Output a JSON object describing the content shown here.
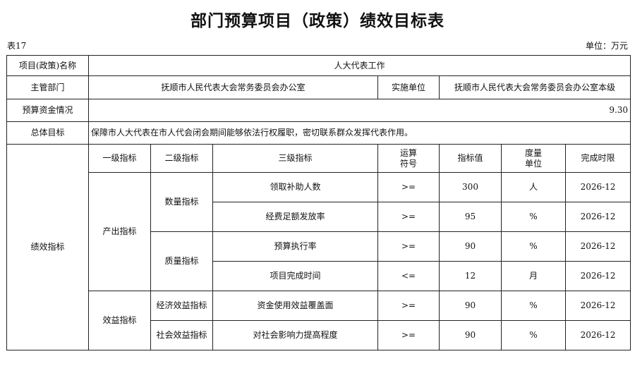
{
  "title": "部门预算项目（政策）绩效目标表",
  "table_no": "表17",
  "unit": "单位：万元",
  "info": {
    "project_name_label": "项目(政策)名称",
    "project_name": "人大代表工作",
    "dept_label": "主管部门",
    "dept": "抚顺市人民代表大会常务委员会办公室",
    "impl_label": "实施单位",
    "impl": "抚顺市人民代表大会常务委员会办公室本级",
    "budget_label": "预算资金情况",
    "budget": "9.30",
    "goal_label": "总体目标",
    "goal": "保障市人大代表在市人代会闭会期间能够依法行权履职，密切联系群众发挥代表作用。"
  },
  "perf": {
    "label": "绩效指标",
    "headers": [
      "一级指标",
      "二级指标",
      "三级指标",
      "运算符号",
      "指标值",
      "度量单位",
      "完成时限"
    ],
    "level1": [
      "产出指标",
      "效益指标"
    ],
    "level2": [
      "数量指标",
      "质量指标",
      "经济效益指标",
      "社会效益指标"
    ],
    "rows": [
      {
        "name": "领取补助人数",
        "op": ">=",
        "value": "300",
        "unit": "人",
        "deadline": "2026-12"
      },
      {
        "name": "经费足额发放率",
        "op": ">=",
        "value": "95",
        "unit": "%",
        "deadline": "2026-12"
      },
      {
        "name": "预算执行率",
        "op": ">=",
        "value": "90",
        "unit": "%",
        "deadline": "2026-12"
      },
      {
        "name": "项目完成时间",
        "op": "<=",
        "value": "12",
        "unit": "月",
        "deadline": "2026-12"
      },
      {
        "name": "资金使用效益覆盖面",
        "op": ">=",
        "value": "90",
        "unit": "%",
        "deadline": "2026-12"
      },
      {
        "name": "对社会影响力提高程度",
        "op": ">=",
        "value": "90",
        "unit": "%",
        "deadline": "2026-12"
      }
    ]
  }
}
